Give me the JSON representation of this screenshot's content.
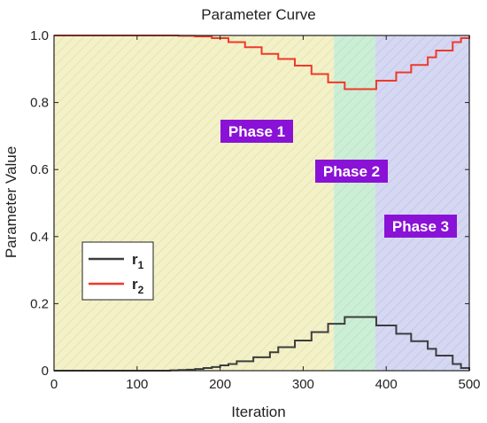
{
  "chart_data": {
    "type": "line",
    "title": "Parameter Curve",
    "xlabel": "Iteration",
    "ylabel": "Parameter Value",
    "xlim": [
      0,
      500
    ],
    "ylim": [
      0,
      1.0
    ],
    "x_ticks": [
      0,
      100,
      200,
      300,
      400,
      500
    ],
    "y_ticks": [
      0,
      0.2,
      0.4,
      0.6,
      0.8,
      1.0
    ],
    "x_tick_labels": [
      "0",
      "100",
      "200",
      "300",
      "400",
      "500"
    ],
    "y_tick_labels": [
      "0",
      "0.2",
      "0.4",
      "0.6",
      "0.8",
      "1.0"
    ],
    "grid": false,
    "legend_position": "lower-left",
    "phases": [
      {
        "label": "Phase 1",
        "x_start": 0,
        "x_end": 337,
        "color": "#f3f1c8",
        "label_color": "#8a12d6"
      },
      {
        "label": "Phase 2",
        "x_start": 337,
        "x_end": 387,
        "color": "#cdeed6",
        "label_color": "#8a12d6"
      },
      {
        "label": "Phase 3",
        "x_start": 387,
        "x_end": 500,
        "color": "#d6d8f2",
        "label_color": "#8a12d6"
      }
    ],
    "series": [
      {
        "name": "r",
        "subscript": "1",
        "color": "#3d3d3d",
        "points": [
          [
            0,
            0
          ],
          [
            130,
            0
          ],
          [
            140,
            0.001
          ],
          [
            150,
            0.002
          ],
          [
            160,
            0.003
          ],
          [
            170,
            0.005
          ],
          [
            180,
            0.008
          ],
          [
            190,
            0.011
          ],
          [
            200,
            0.016
          ],
          [
            210,
            0.02
          ],
          [
            220,
            0.028
          ],
          [
            240,
            0.04
          ],
          [
            260,
            0.055
          ],
          [
            270,
            0.07
          ],
          [
            290,
            0.09
          ],
          [
            310,
            0.115
          ],
          [
            330,
            0.14
          ],
          [
            350,
            0.16
          ],
          [
            370,
            0.16
          ],
          [
            387,
            0.16
          ],
          [
            388,
            0.135
          ],
          [
            410,
            0.135
          ],
          [
            412,
            0.11
          ],
          [
            430,
            0.088
          ],
          [
            450,
            0.065
          ],
          [
            460,
            0.045
          ],
          [
            480,
            0.02
          ],
          [
            490,
            0.008
          ],
          [
            500,
            0
          ]
        ]
      },
      {
        "name": "r",
        "subscript": "2",
        "color": "#ee3a2a",
        "points": [
          [
            0,
            1.0
          ],
          [
            130,
            1.0
          ],
          [
            150,
            0.999
          ],
          [
            170,
            0.997
          ],
          [
            190,
            0.992
          ],
          [
            210,
            0.98
          ],
          [
            230,
            0.965
          ],
          [
            250,
            0.945
          ],
          [
            270,
            0.93
          ],
          [
            290,
            0.91
          ],
          [
            310,
            0.885
          ],
          [
            330,
            0.86
          ],
          [
            350,
            0.84
          ],
          [
            370,
            0.84
          ],
          [
            387,
            0.84
          ],
          [
            388,
            0.865
          ],
          [
            410,
            0.865
          ],
          [
            412,
            0.89
          ],
          [
            430,
            0.912
          ],
          [
            450,
            0.935
          ],
          [
            460,
            0.955
          ],
          [
            480,
            0.98
          ],
          [
            490,
            0.992
          ],
          [
            500,
            1.0
          ]
        ]
      }
    ]
  }
}
